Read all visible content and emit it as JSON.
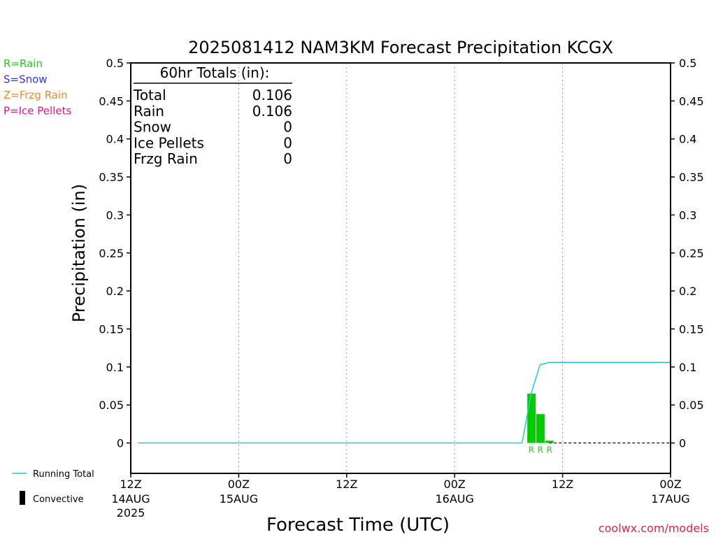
{
  "chart_data": {
    "type": "bar",
    "title": "2025081412 NAM3KM Forecast Precipitation KCGX",
    "xlabel": "Forecast Time (UTC)",
    "ylabel": "Precipitation (in)",
    "ylim": [
      -0.04,
      0.5
    ],
    "yticks": [
      "0",
      "0.05",
      "0.1",
      "0.15",
      "0.2",
      "0.25",
      "0.3",
      "0.35",
      "0.4",
      "0.45",
      "0.5"
    ],
    "xlim_hours": [
      0,
      60
    ],
    "xticks": [
      {
        "hour": 0,
        "label": "12Z",
        "sub": "14AUG",
        "sub2": "2025"
      },
      {
        "hour": 12,
        "label": "00Z",
        "sub": "15AUG",
        "sub2": ""
      },
      {
        "hour": 24,
        "label": "12Z",
        "sub": "",
        "sub2": ""
      },
      {
        "hour": 36,
        "label": "00Z",
        "sub": "16AUG",
        "sub2": ""
      },
      {
        "hour": 48,
        "label": "12Z",
        "sub": "",
        "sub2": ""
      },
      {
        "hour": 60,
        "label": "00Z",
        "sub": "17AUG",
        "sub2": ""
      }
    ],
    "grid": "vertical dashed at 12-hour intervals",
    "precip_type_legend": [
      {
        "text": "R=Rain",
        "color": "#22cc22"
      },
      {
        "text": "S=Snow",
        "color": "#3333ee"
      },
      {
        "text": "Z=Frzg Rain",
        "color": "#ee8833"
      },
      {
        "text": "P=Ice Pellets",
        "color": "#ee1188"
      }
    ],
    "series_legend": [
      {
        "text": "Running Total",
        "color": "#22cccc"
      },
      {
        "text": "Convective",
        "color": "#000000"
      }
    ],
    "rain_bars": [
      {
        "hour": 44,
        "value": 0.065,
        "label": "R"
      },
      {
        "hour": 45,
        "value": 0.038,
        "label": "R"
      },
      {
        "hour": 46,
        "value": 0.003,
        "label": "R"
      }
    ],
    "running_total": [
      {
        "hour": 0.8,
        "value": 0
      },
      {
        "hour": 43.5,
        "value": 0
      },
      {
        "hour": 44.5,
        "value": 0.065
      },
      {
        "hour": 45.5,
        "value": 0.103
      },
      {
        "hour": 46.5,
        "value": 0.106
      },
      {
        "hour": 60,
        "value": 0.106
      }
    ],
    "convective_baseline": [
      {
        "hour": 46.5,
        "value": 0
      },
      {
        "hour": 60,
        "value": 0
      }
    ],
    "bar_color": "#00cc00",
    "line_color": "#22cccc",
    "totals_box": {
      "header": "60hr Totals (in):",
      "rows": [
        {
          "name": "Total",
          "value": "0.106"
        },
        {
          "name": "Rain",
          "value": "0.106"
        },
        {
          "name": "Snow",
          "value": "0"
        },
        {
          "name": "Ice Pellets",
          "value": "0"
        },
        {
          "name": "Frzg Rain",
          "value": "0"
        }
      ]
    },
    "credit": "coolwx.com/models",
    "credit_color": "#dd2244"
  }
}
